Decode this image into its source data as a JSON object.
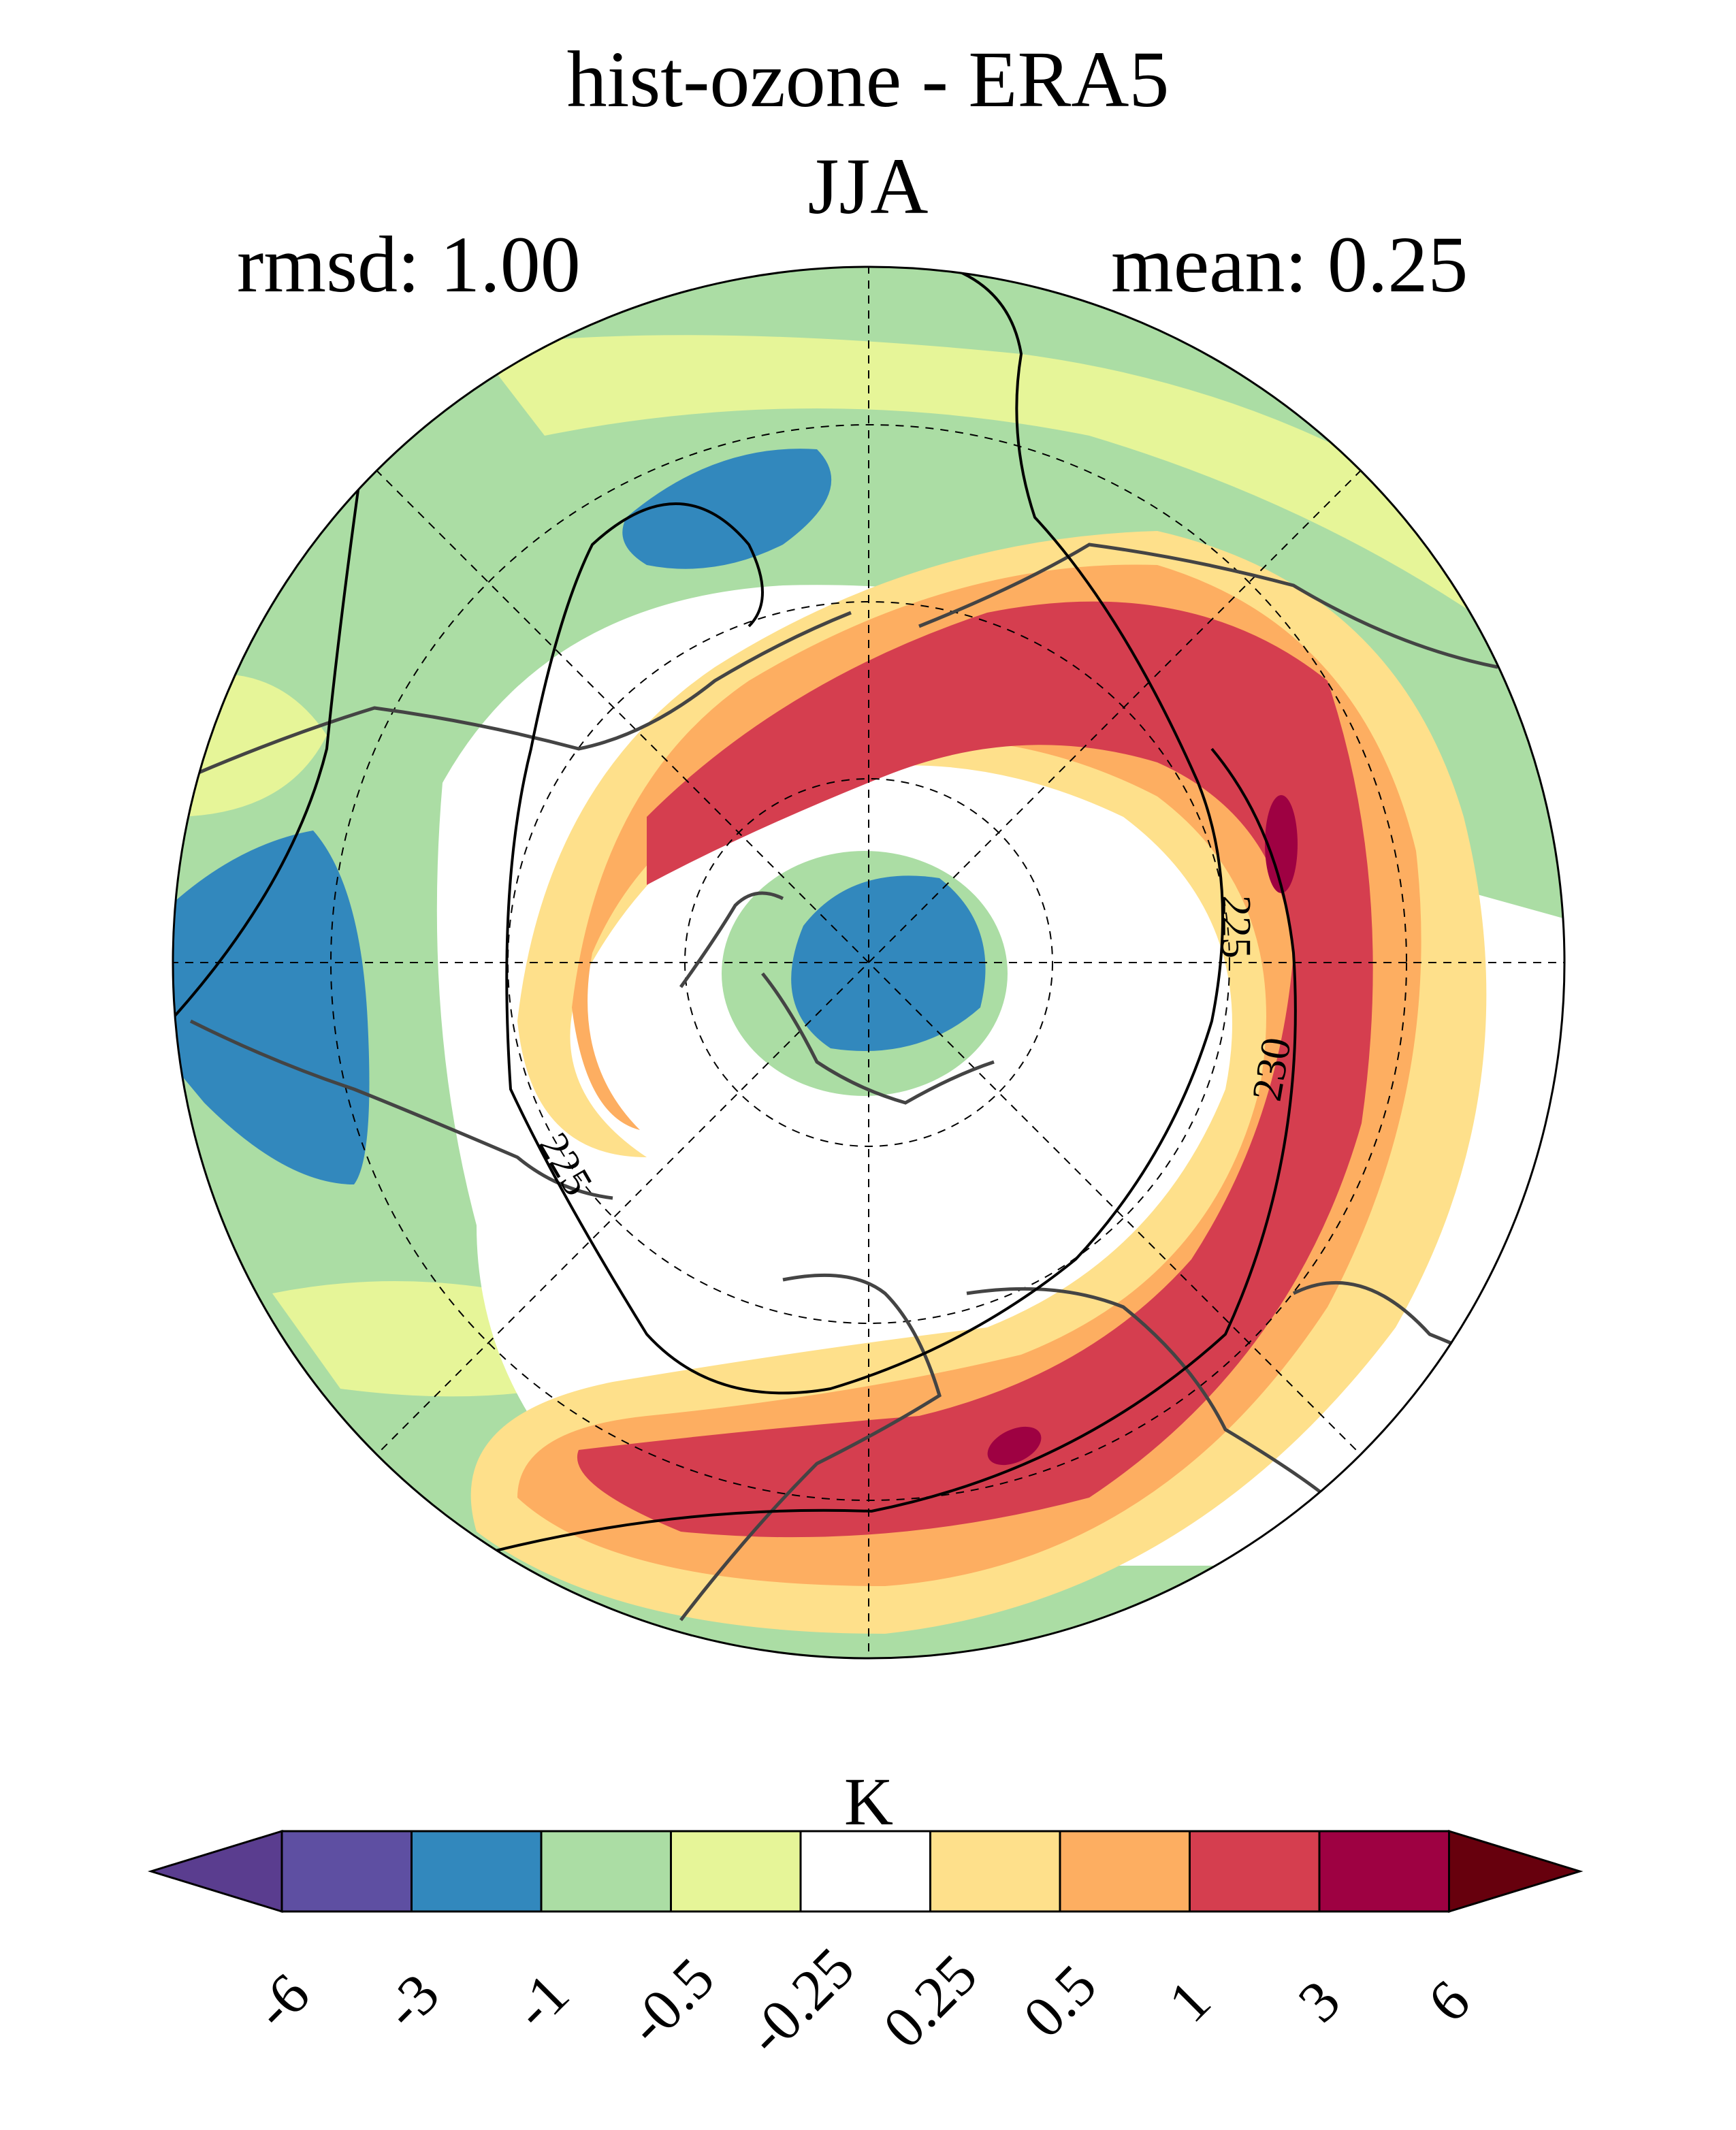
{
  "title": "hist-ozone - ERA5",
  "season": "JJA",
  "rmsd_label": "rmsd: 1.00",
  "mean_label": "mean: 0.25",
  "colorbar": {
    "unit": "K",
    "tick_labels": [
      "-6",
      "-3",
      "-1",
      "-0.5",
      "-0.25",
      "0.25",
      "0.5",
      "1",
      "3",
      "6"
    ],
    "colors": [
      "#5a3d8f",
      "#5e4fa2",
      "#3288bd",
      "#abdda4",
      "#e6f598",
      "#ffffff",
      "#fee08b",
      "#fdae61",
      "#d53e4f",
      "#9e0142",
      "#67000d"
    ]
  },
  "contour_labels": [
    "225",
    "230",
    "225"
  ],
  "map": {
    "projection": "north polar stereographic",
    "gridlines": "dashed",
    "coastlines": true
  }
}
